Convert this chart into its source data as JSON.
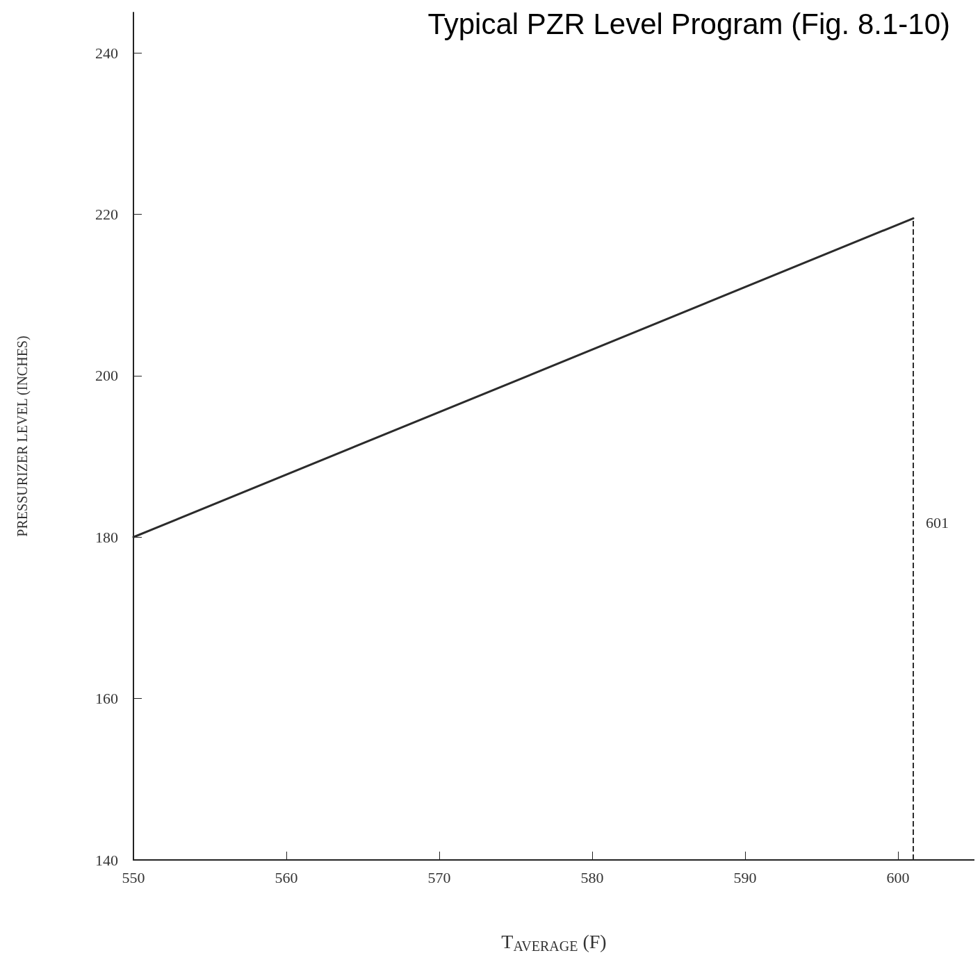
{
  "chart_data": {
    "type": "line",
    "title": "Typical PZR Level Program (Fig. 8.1-10)",
    "xlabel": "T$_{AVERAGE}$ (F)",
    "ylabel": "PRESSURIZER LEVEL (INCHES)",
    "x": [
      550,
      601
    ],
    "values": [
      180,
      219.5
    ],
    "color": "#2b2b2b",
    "xlim": [
      550,
      605
    ],
    "ylim": [
      140,
      245
    ],
    "xticks": [
      550,
      560,
      570,
      580,
      590,
      600
    ],
    "yticks": [
      140,
      160,
      180,
      200,
      220,
      240
    ],
    "ref_lines": [
      {
        "axis": "x",
        "value": 601,
        "label": "601",
        "line_style": "dashed",
        "color": "#2b2b2b"
      }
    ],
    "grid": false,
    "marker": "none",
    "line_style": "solid"
  }
}
